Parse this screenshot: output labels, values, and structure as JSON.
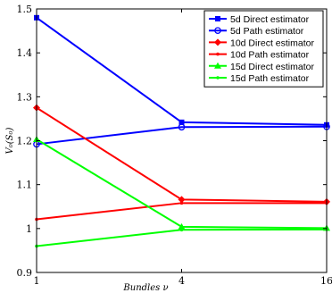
{
  "chart_data": {
    "type": "line",
    "title": "",
    "xlabel": "Bundles ν",
    "ylabel": "V₀(S₀)",
    "x": [
      1,
      4,
      16
    ],
    "x_tick_labels": [
      "1",
      "4",
      "16"
    ],
    "y_tick_labels": [
      "0.9",
      "1",
      "1.1",
      "1.2",
      "1.3",
      "1.4",
      "1.5"
    ],
    "ylim": [
      0.9,
      1.5
    ],
    "grid": false,
    "legend_position": "top-right",
    "series": [
      {
        "name": "5d Direct estimator",
        "values": [
          1.48,
          1.242,
          1.236
        ],
        "color": "#0000ff",
        "marker": "square"
      },
      {
        "name": "5d Path estimator",
        "values": [
          1.192,
          1.231,
          1.232
        ],
        "color": "#0000ff",
        "marker": "circle"
      },
      {
        "name": "10d Direct estimator",
        "values": [
          1.275,
          1.066,
          1.061
        ],
        "color": "#ff0000",
        "marker": "diamond"
      },
      {
        "name": "10d Path estimator",
        "values": [
          1.021,
          1.058,
          1.058
        ],
        "color": "#ff0000",
        "marker": "dot"
      },
      {
        "name": "15d Direct estimator",
        "values": [
          1.203,
          1.004,
          1.001
        ],
        "color": "#00ff00",
        "marker": "triangle"
      },
      {
        "name": "15d Path estimator",
        "values": [
          0.96,
          0.997,
          0.998
        ],
        "color": "#00ff00",
        "marker": "dot"
      }
    ]
  }
}
